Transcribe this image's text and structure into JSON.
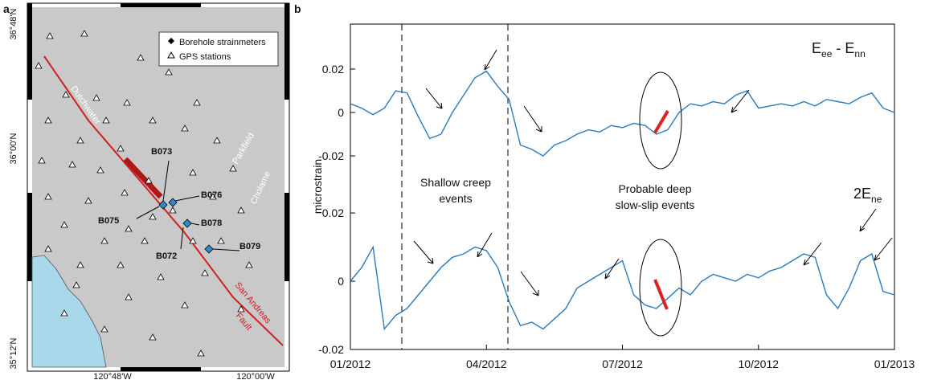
{
  "panel_labels": [
    "a",
    "b"
  ],
  "map": {
    "lat_labels": [
      "36°48'N",
      "36°00'N",
      "35°12'N"
    ],
    "lon_labels": [
      "120°48'W",
      "120°00'W"
    ],
    "legend": [
      "Borehole strainmeters",
      "GPS stations"
    ],
    "stations": [
      "B073",
      "B076",
      "B075",
      "B078",
      "B072",
      "B079"
    ],
    "places": [
      "Dutchwater",
      "Parkfield",
      "Cholame",
      "San Andreas",
      "Fault"
    ]
  },
  "chart_data": [
    {
      "type": "line",
      "y_label": "microstrain",
      "annotations": [
        "Shallow creep events",
        "Probable deep slow-slip events"
      ],
      "series_label": [
        "E",
        "ee",
        " - E",
        "nn"
      ],
      "x": [
        0,
        0.25,
        0.5,
        0.75,
        1,
        1.25,
        1.5,
        1.75,
        2,
        2.25,
        2.5,
        2.75,
        3,
        3.25,
        3.5,
        3.75,
        4,
        4.25,
        4.5,
        4.75,
        5,
        5.25,
        5.5,
        5.75,
        6,
        6.25,
        6.5,
        6.75,
        7,
        7.25,
        7.5,
        7.75,
        8,
        8.25,
        8.5,
        8.75,
        9,
        9.25,
        9.5,
        9.75,
        10,
        10.25,
        10.5,
        10.75,
        11,
        11.25,
        11.5,
        11.75,
        12
      ],
      "series": [
        {
          "color": "#2a7ab9",
          "values": [
            0.004,
            0.002,
            -0.001,
            0.002,
            0.01,
            0.009,
            -0.002,
            -0.012,
            -0.01,
            0.0,
            0.008,
            0.016,
            0.019,
            0.012,
            0.006,
            -0.015,
            -0.017,
            -0.02,
            -0.015,
            -0.013,
            -0.01,
            -0.008,
            -0.009,
            -0.006,
            -0.007,
            -0.005,
            -0.006,
            -0.01,
            -0.008,
            0.0,
            0.004,
            0.003,
            0.005,
            0.004,
            0.008,
            0.01,
            0.002,
            0.003,
            0.004,
            0.003,
            0.005,
            0.003,
            0.006,
            0.005,
            0.004,
            0.007,
            0.009,
            0.002,
            0.0
          ]
        }
      ],
      "xlim": [
        0,
        12
      ],
      "ylim": [
        -0.037,
        0.0407
      ],
      "yticks": [
        -0.02,
        0,
        0.02
      ]
    },
    {
      "type": "line",
      "series_label": [
        "2E",
        "ne"
      ],
      "x": [
        0,
        0.25,
        0.5,
        0.75,
        1,
        1.25,
        1.5,
        1.75,
        2,
        2.25,
        2.5,
        2.75,
        3,
        3.25,
        3.5,
        3.75,
        4,
        4.25,
        4.5,
        4.75,
        5,
        5.25,
        5.5,
        5.75,
        6,
        6.25,
        6.5,
        6.75,
        7,
        7.25,
        7.5,
        7.75,
        8,
        8.25,
        8.5,
        8.75,
        9,
        9.25,
        9.5,
        9.75,
        10,
        10.25,
        10.5,
        10.75,
        11,
        11.25,
        11.5,
        11.75,
        12
      ],
      "series": [
        {
          "color": "#2a7ab9",
          "values": [
            0.0,
            0.004,
            0.01,
            -0.014,
            -0.01,
            -0.008,
            -0.004,
            0.0,
            0.004,
            0.007,
            0.008,
            0.01,
            0.009,
            0.004,
            -0.006,
            -0.013,
            -0.012,
            -0.014,
            -0.011,
            -0.008,
            -0.002,
            0.0,
            0.002,
            0.004,
            0.006,
            -0.004,
            -0.007,
            -0.008,
            -0.005,
            -0.002,
            -0.004,
            0.0,
            0.002,
            0.001,
            0.0,
            0.002,
            0.001,
            0.003,
            0.004,
            0.006,
            0.008,
            0.007,
            -0.004,
            -0.008,
            -0.002,
            0.006,
            0.008,
            -0.003,
            -0.004
          ]
        }
      ],
      "xlim": [
        0,
        12
      ],
      "xticks": [
        {
          "value": 0,
          "label": "01/2012"
        },
        {
          "value": 3,
          "label": "04/2012"
        },
        {
          "value": 6,
          "label": "07/2012"
        },
        {
          "value": 9,
          "label": "10/2012"
        },
        {
          "value": 12,
          "label": "01/2013"
        }
      ],
      "ylim": [
        -0.02,
        0.0259
      ],
      "yticks": [
        -0.02,
        0,
        0.02
      ]
    }
  ]
}
